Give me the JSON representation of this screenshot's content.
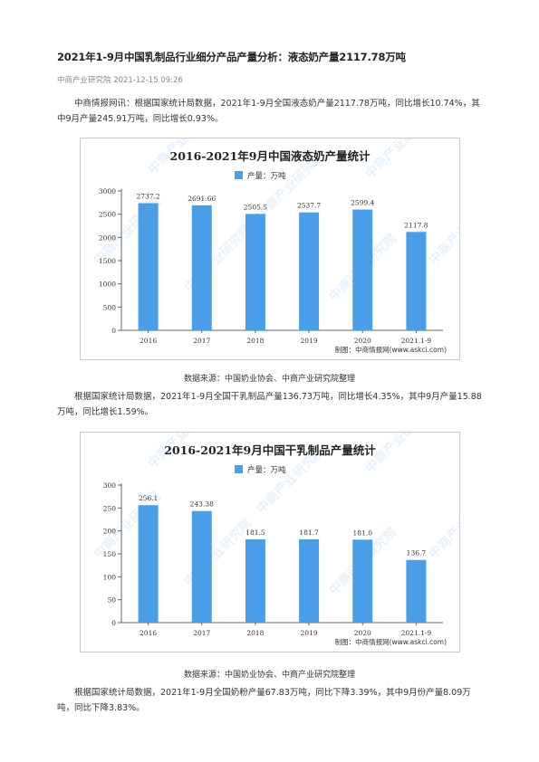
{
  "article": {
    "title": "2021年1-9月中国乳制品行业细分产品产量分析：液态奶产量2117.78万吨",
    "source_line": "中商产业研究院  2021-12-15 09:26",
    "paragraph1": "中商情报网讯：根据国家统计局数据，2021年1-9月全国液态奶产量2117.78万吨，同比增长10.74%，其中9月产量245.91万吨，同比增长0.93%。",
    "caption1": "数据来源：中国奶业协会、中商产业研究院整理",
    "paragraph2": "根据国家统计局数据，2021年1-9月全国干乳制品产量136.73万吨，同比增长4.35%，其中9月产量15.88万吨，同比增长1.59%。",
    "caption2": "数据来源：中国奶业协会、中商产业研究院整理",
    "paragraph3": "根据国家统计局数据，2021年1-9月全国奶粉产量67.83万吨，同比下降3.39%，其中9月份产量8.09万吨，同比下降3.83%。"
  },
  "watermark": "中商产业研究院",
  "chart_data": [
    {
      "type": "bar",
      "title": "2016-2021年9月中国液态奶产量统计",
      "legend": "产量：万吨",
      "legend_position": "top-center",
      "categories": [
        "2016",
        "2017",
        "2018",
        "2019",
        "2020",
        "2021.1-9"
      ],
      "values": [
        2737.2,
        2691.66,
        2505.5,
        2537.7,
        2599.4,
        2117.8
      ],
      "value_labels": [
        "2737.2",
        "2691.66",
        "2505.5",
        "2537.7",
        "2599.4",
        "2117.8"
      ],
      "ylim": [
        0,
        3000
      ],
      "yticks": [
        0,
        500,
        1000,
        1500,
        2000,
        2500,
        3000
      ],
      "bar_color": "#4a9ee8",
      "credit": "制图：中商情报网(www.askci.com)",
      "grid": false
    },
    {
      "type": "bar",
      "title": "2016-2021年9月中国干乳制品产量统计",
      "legend": "产量：万吨",
      "legend_position": "top-center",
      "categories": [
        "2016",
        "2017",
        "2018",
        "2019",
        "2020",
        "2021.1-9"
      ],
      "values": [
        256.1,
        243.38,
        181.5,
        181.7,
        181.0,
        136.7
      ],
      "value_labels": [
        "256.1",
        "243.38",
        "181.5",
        "181.7",
        "181.0",
        "136.7"
      ],
      "ylim": [
        0,
        300
      ],
      "yticks": [
        0,
        50,
        100,
        150,
        200,
        250,
        300
      ],
      "bar_color": "#4a9ee8",
      "credit": "制图：中商情报网(www.askci.com)",
      "grid": false
    }
  ]
}
